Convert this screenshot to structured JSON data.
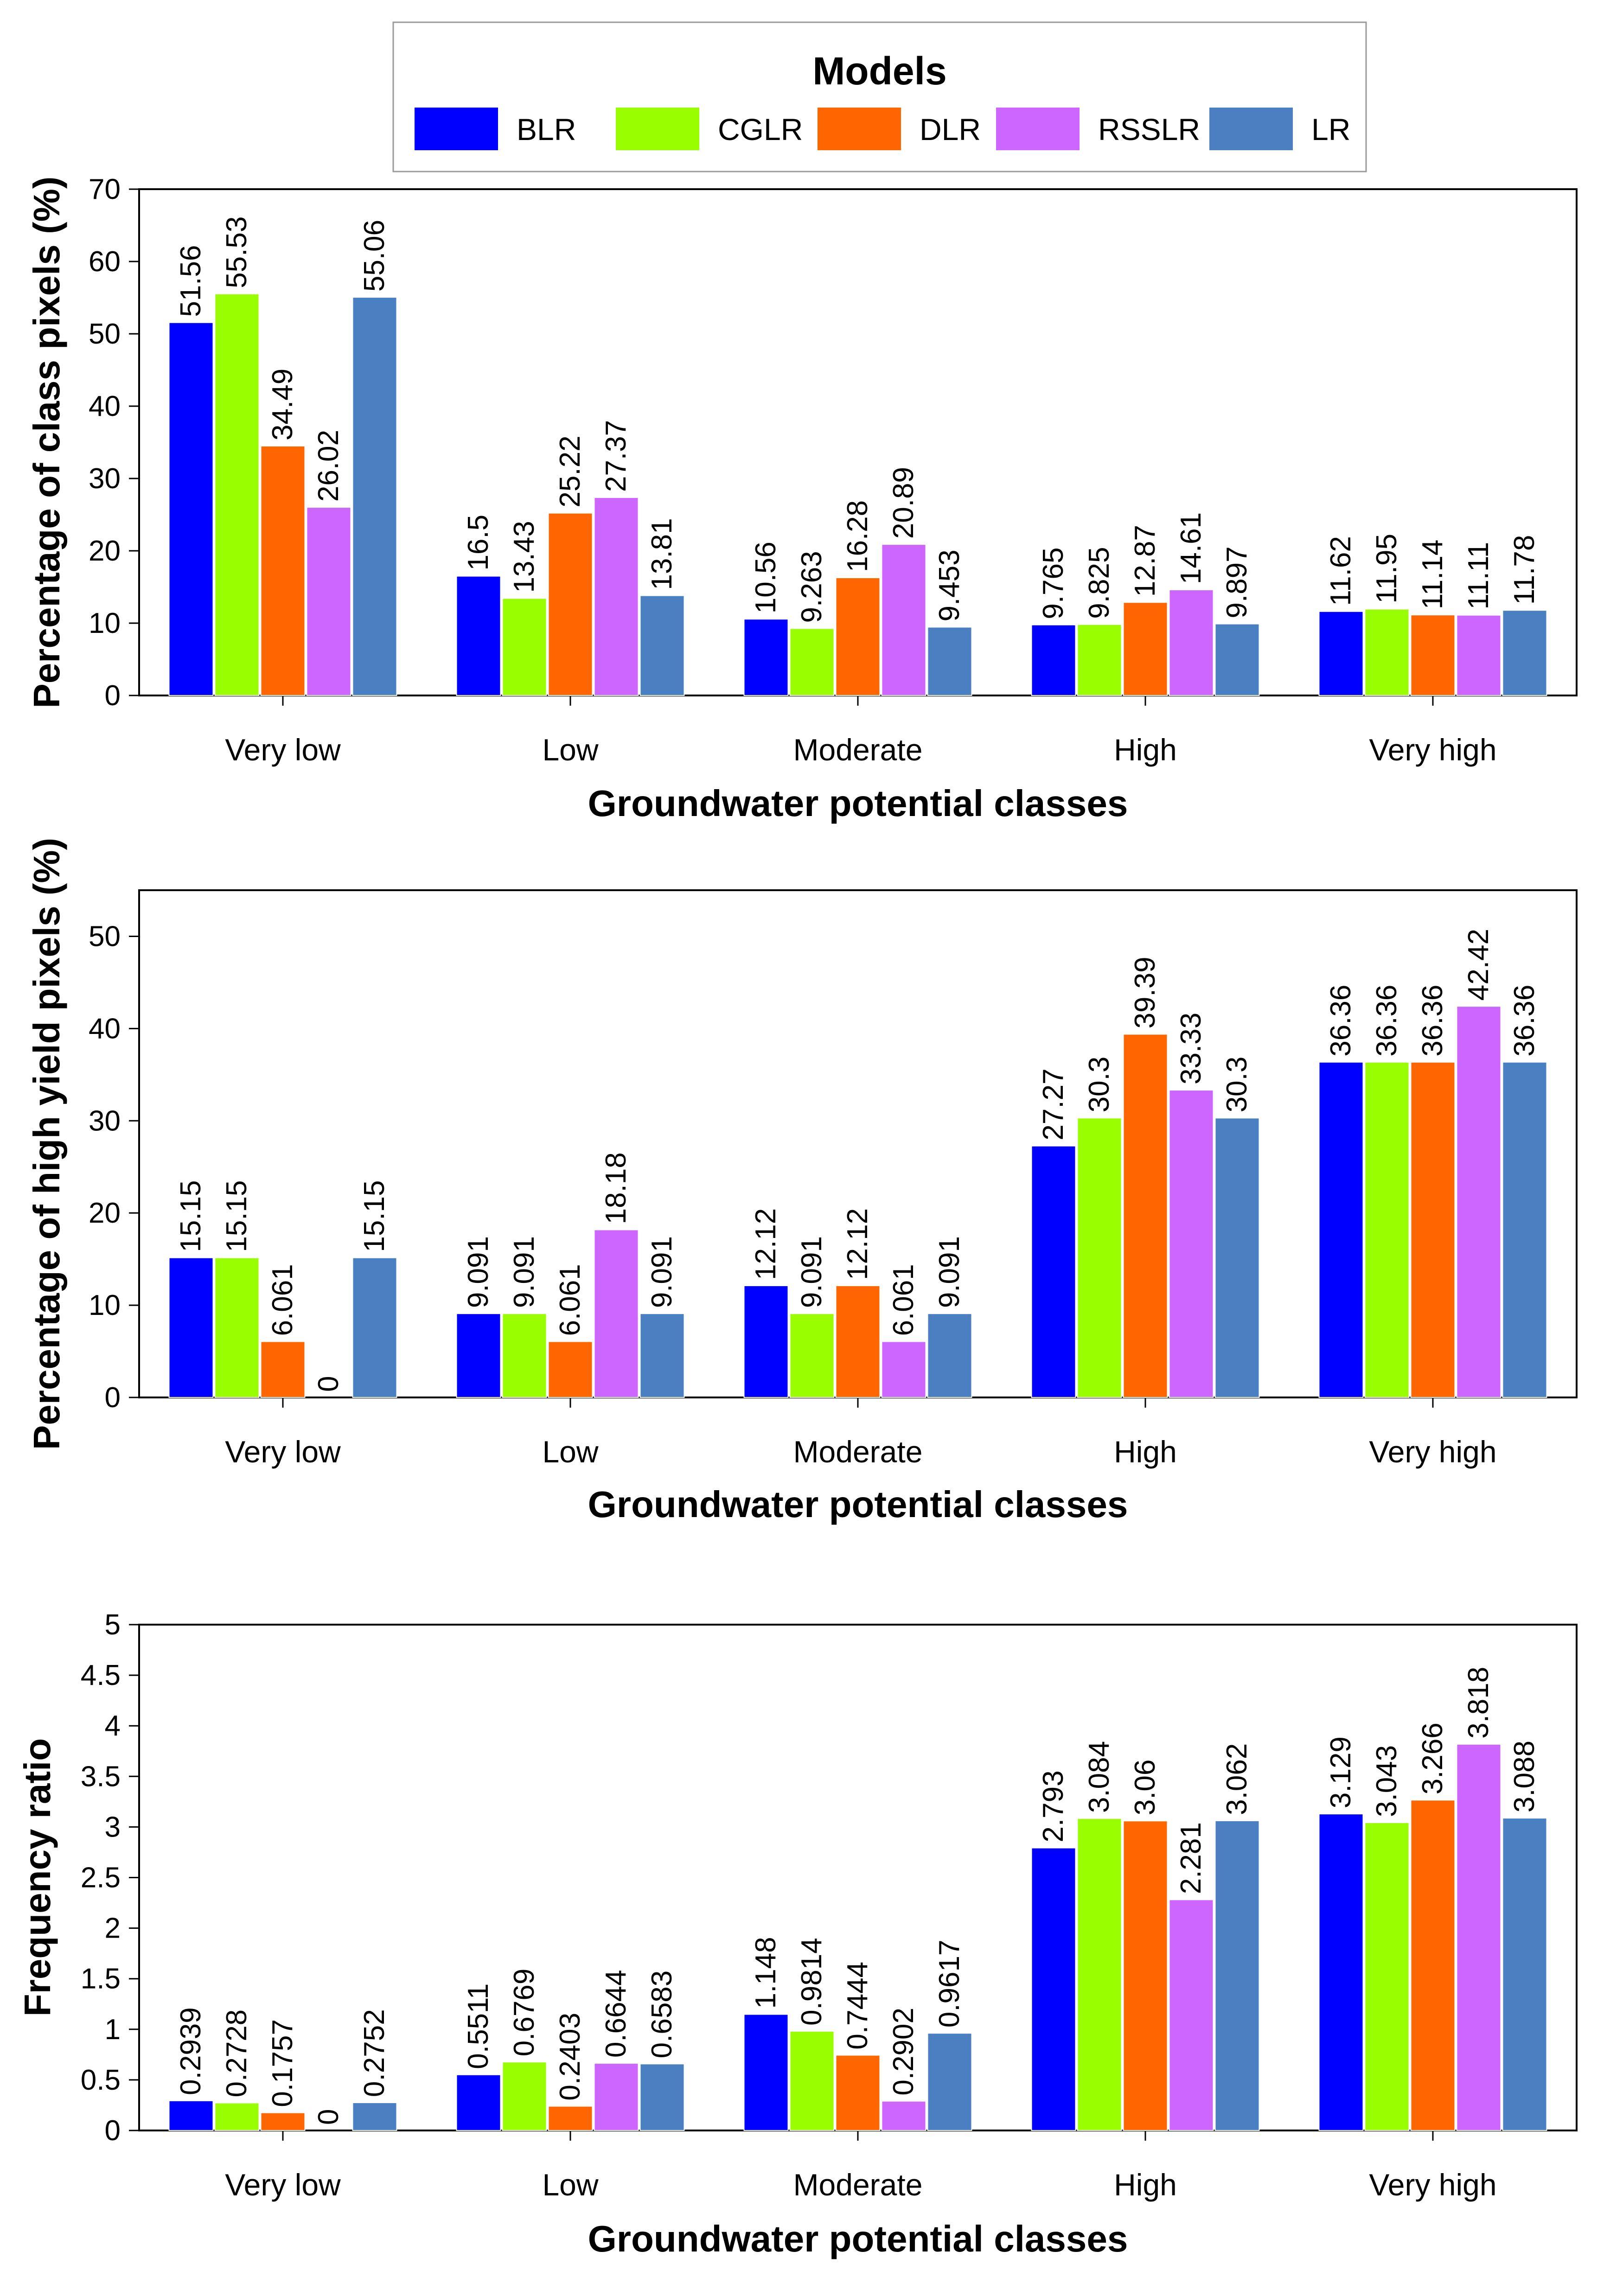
{
  "legend": {
    "title": "Models",
    "items": [
      {
        "name": "BLR",
        "color": "#0000ff"
      },
      {
        "name": "CGLR",
        "color": "#99ff00"
      },
      {
        "name": "DLR",
        "color": "#ff6600"
      },
      {
        "name": "RSSLR",
        "color": "#cc66ff"
      },
      {
        "name": "LR",
        "color": "#4a7fc1"
      }
    ]
  },
  "chart_data": [
    {
      "type": "bar",
      "categories": [
        "Very low",
        "Low",
        "Moderate",
        "High",
        "Very high"
      ],
      "series": [
        {
          "name": "BLR",
          "values": [
            51.56,
            16.5,
            10.56,
            9.765,
            11.62
          ],
          "labels": [
            "51.56",
            "16.5",
            "10.56",
            "9.765",
            "11.62"
          ]
        },
        {
          "name": "CGLR",
          "values": [
            55.53,
            13.43,
            9.263,
            9.825,
            11.95
          ],
          "labels": [
            "55.53",
            "13.43",
            "9.263",
            "9.825",
            "11.95"
          ]
        },
        {
          "name": "DLR",
          "values": [
            34.49,
            25.22,
            16.28,
            12.87,
            11.14
          ],
          "labels": [
            "34.49",
            "25.22",
            "16.28",
            "12.87",
            "11.14"
          ]
        },
        {
          "name": "RSSLR",
          "values": [
            26.02,
            27.37,
            20.89,
            14.61,
            11.11
          ],
          "labels": [
            "26.02",
            "27.37",
            "20.89",
            "14.61",
            "11.11"
          ]
        },
        {
          "name": "LR",
          "values": [
            55.06,
            13.81,
            9.453,
            9.897,
            11.78
          ],
          "labels": [
            "55.06",
            "13.81",
            "9.453",
            "9.897",
            "11.78"
          ]
        }
      ],
      "xlabel": "Groundwater potential classes",
      "ylabel": "Percentage of class pixels (%)",
      "ylim": [
        0,
        70
      ],
      "yticks": [
        "0",
        "10",
        "20",
        "30",
        "40",
        "50",
        "60",
        "70"
      ]
    },
    {
      "type": "bar",
      "categories": [
        "Very low",
        "Low",
        "Moderate",
        "High",
        "Very high"
      ],
      "series": [
        {
          "name": "BLR",
          "values": [
            15.15,
            9.091,
            12.12,
            27.27,
            36.36
          ],
          "labels": [
            "15.15",
            "9.091",
            "12.12",
            "27.27",
            "36.36"
          ]
        },
        {
          "name": "CGLR",
          "values": [
            15.15,
            9.091,
            9.091,
            30.3,
            36.36
          ],
          "labels": [
            "15.15",
            "9.091",
            "9.091",
            "30.3",
            "36.36"
          ]
        },
        {
          "name": "DLR",
          "values": [
            6.061,
            6.061,
            12.12,
            39.39,
            36.36
          ],
          "labels": [
            "6.061",
            "6.061",
            "12.12",
            "39.39",
            "36.36"
          ]
        },
        {
          "name": "RSSLR",
          "values": [
            0,
            18.18,
            6.061,
            33.33,
            42.42
          ],
          "labels": [
            "0",
            "18.18",
            "6.061",
            "33.33",
            "42.42"
          ]
        },
        {
          "name": "LR",
          "values": [
            15.15,
            9.091,
            9.091,
            30.3,
            36.36
          ],
          "labels": [
            "15.15",
            "9.091",
            "9.091",
            "30.3",
            "36.36"
          ]
        }
      ],
      "xlabel": "Groundwater potential classes",
      "ylabel": "Percentage of high yield pixels (%)",
      "ylim": [
        0,
        55
      ],
      "yticks": [
        "0",
        "10",
        "20",
        "30",
        "40",
        "50"
      ]
    },
    {
      "type": "bar",
      "categories": [
        "Very low",
        "Low",
        "Moderate",
        "High",
        "Very high"
      ],
      "series": [
        {
          "name": "BLR",
          "values": [
            0.2939,
            0.5511,
            1.148,
            2.793,
            3.129
          ],
          "labels": [
            "0.2939",
            "0.5511",
            "1.148",
            "2.793",
            "3.129"
          ]
        },
        {
          "name": "CGLR",
          "values": [
            0.2728,
            0.6769,
            0.9814,
            3.084,
            3.043
          ],
          "labels": [
            "0.2728",
            "0.6769",
            "0.9814",
            "3.084",
            "3.043"
          ]
        },
        {
          "name": "DLR",
          "values": [
            0.1757,
            0.2403,
            0.7444,
            3.06,
            3.266
          ],
          "labels": [
            "0.1757",
            "0.2403",
            "0.7444",
            "3.06",
            "3.266"
          ]
        },
        {
          "name": "RSSLR",
          "values": [
            0,
            0.6644,
            0.2902,
            2.281,
            3.818
          ],
          "labels": [
            "0",
            "0.6644",
            "0.2902",
            "2.281",
            "3.818"
          ]
        },
        {
          "name": "LR",
          "values": [
            0.2752,
            0.6583,
            0.9617,
            3.062,
            3.088
          ],
          "labels": [
            "0.2752",
            "0.6583",
            "0.9617",
            "3.062",
            "3.088"
          ]
        }
      ],
      "xlabel": "Groundwater potential classes",
      "ylabel": "Frequency ratio",
      "ylim": [
        0,
        5
      ],
      "yticks": [
        "0",
        "0.5",
        "1",
        "1.5",
        "2",
        "2.5",
        "3",
        "3.5",
        "4",
        "4.5",
        "5"
      ]
    }
  ]
}
